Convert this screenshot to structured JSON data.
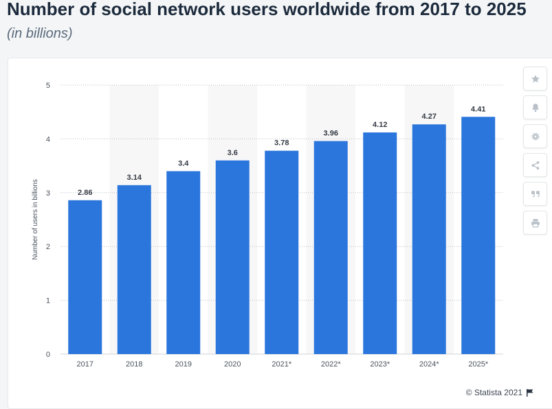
{
  "header": {
    "title": "Number of social network users worldwide from 2017 to 2025",
    "subtitle": "(in billions)"
  },
  "footer": {
    "credit": "© Statista 2021"
  },
  "toolbar": {
    "icons": [
      "star-icon",
      "bell-icon",
      "gear-icon",
      "share-icon",
      "quote-icon",
      "print-icon"
    ]
  },
  "colors": {
    "bar": "#2b76dc",
    "band": "#f7f7f7",
    "grid": "#b9bec4",
    "label": "#333a44",
    "tick": "#4a525c"
  },
  "chart_data": {
    "type": "bar",
    "categories": [
      "2017",
      "2018",
      "2019",
      "2020",
      "2021*",
      "2022*",
      "2023*",
      "2024*",
      "2025*"
    ],
    "values": [
      2.86,
      3.14,
      3.4,
      3.6,
      3.78,
      3.96,
      4.12,
      4.27,
      4.41
    ],
    "data_labels": [
      "2.86",
      "3.14",
      "3.4",
      "3.6",
      "3.78",
      "3.96",
      "4.12",
      "4.27",
      "4.41"
    ],
    "ylabel": "Number of users in billions",
    "xlabel": "",
    "ylim": [
      0,
      5
    ],
    "yticks": [
      0,
      1,
      2,
      3,
      4,
      5
    ],
    "grid": true,
    "legend": "none"
  }
}
